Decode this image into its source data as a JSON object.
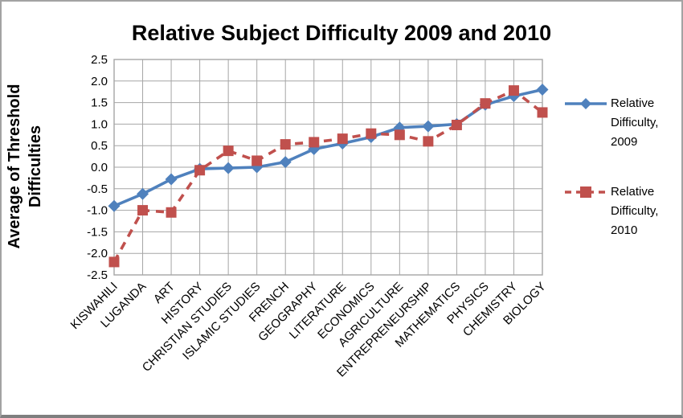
{
  "title": "Relative Subject Difficulty 2009 and 2010",
  "y_axis_title": {
    "line1": "Average of Threshold",
    "line2": "Difficulties"
  },
  "legend": {
    "items": [
      {
        "lines": [
          "Relative",
          "Difficulty,",
          "2009"
        ]
      },
      {
        "lines": [
          "Relative",
          "Difficulty,",
          "2010"
        ]
      }
    ]
  },
  "colors": {
    "series_2009": "#4F81BD",
    "series_2010": "#C0504D",
    "gridline": "#a6a6a6",
    "text": "#000000"
  },
  "chart_data": {
    "type": "line",
    "title": "Relative Subject Difficulty 2009 and 2010",
    "xlabel": "",
    "ylabel": "Average of Threshold Difficulties",
    "ylim": [
      -2.5,
      2.5
    ],
    "ytick_step": 0.5,
    "grid": true,
    "legend_position": "right",
    "categories": [
      "KISWAHILI",
      "LUGANDA",
      "ART",
      "HISTORY",
      "CHRISTIAN STUDIES",
      "ISLAMIC STUDIES",
      "FRENCH",
      "GEOGRAPHY",
      "LITERATURE",
      "ECONOMICS",
      "AGRICULTURE",
      "ENTREPRENEURSHIP",
      "MATHEMATICS",
      "PHYSICS",
      "CHEMISTRY",
      "BIOLOGY"
    ],
    "series": [
      {
        "name": "Relative Difficulty, 2009",
        "color": "#4F81BD",
        "marker": "diamond",
        "line_style": "solid",
        "values": [
          -0.9,
          -0.62,
          -0.28,
          -0.04,
          -0.02,
          0.0,
          0.12,
          0.42,
          0.55,
          0.7,
          0.92,
          0.95,
          1.0,
          1.45,
          1.65,
          1.8
        ]
      },
      {
        "name": "Relative Difficulty, 2010",
        "color": "#C0504D",
        "marker": "square",
        "line_style": "dashed",
        "values": [
          -2.2,
          -1.0,
          -1.05,
          -0.07,
          0.38,
          0.15,
          0.53,
          0.58,
          0.66,
          0.78,
          0.75,
          0.6,
          0.98,
          1.48,
          1.78,
          1.27
        ]
      }
    ]
  }
}
